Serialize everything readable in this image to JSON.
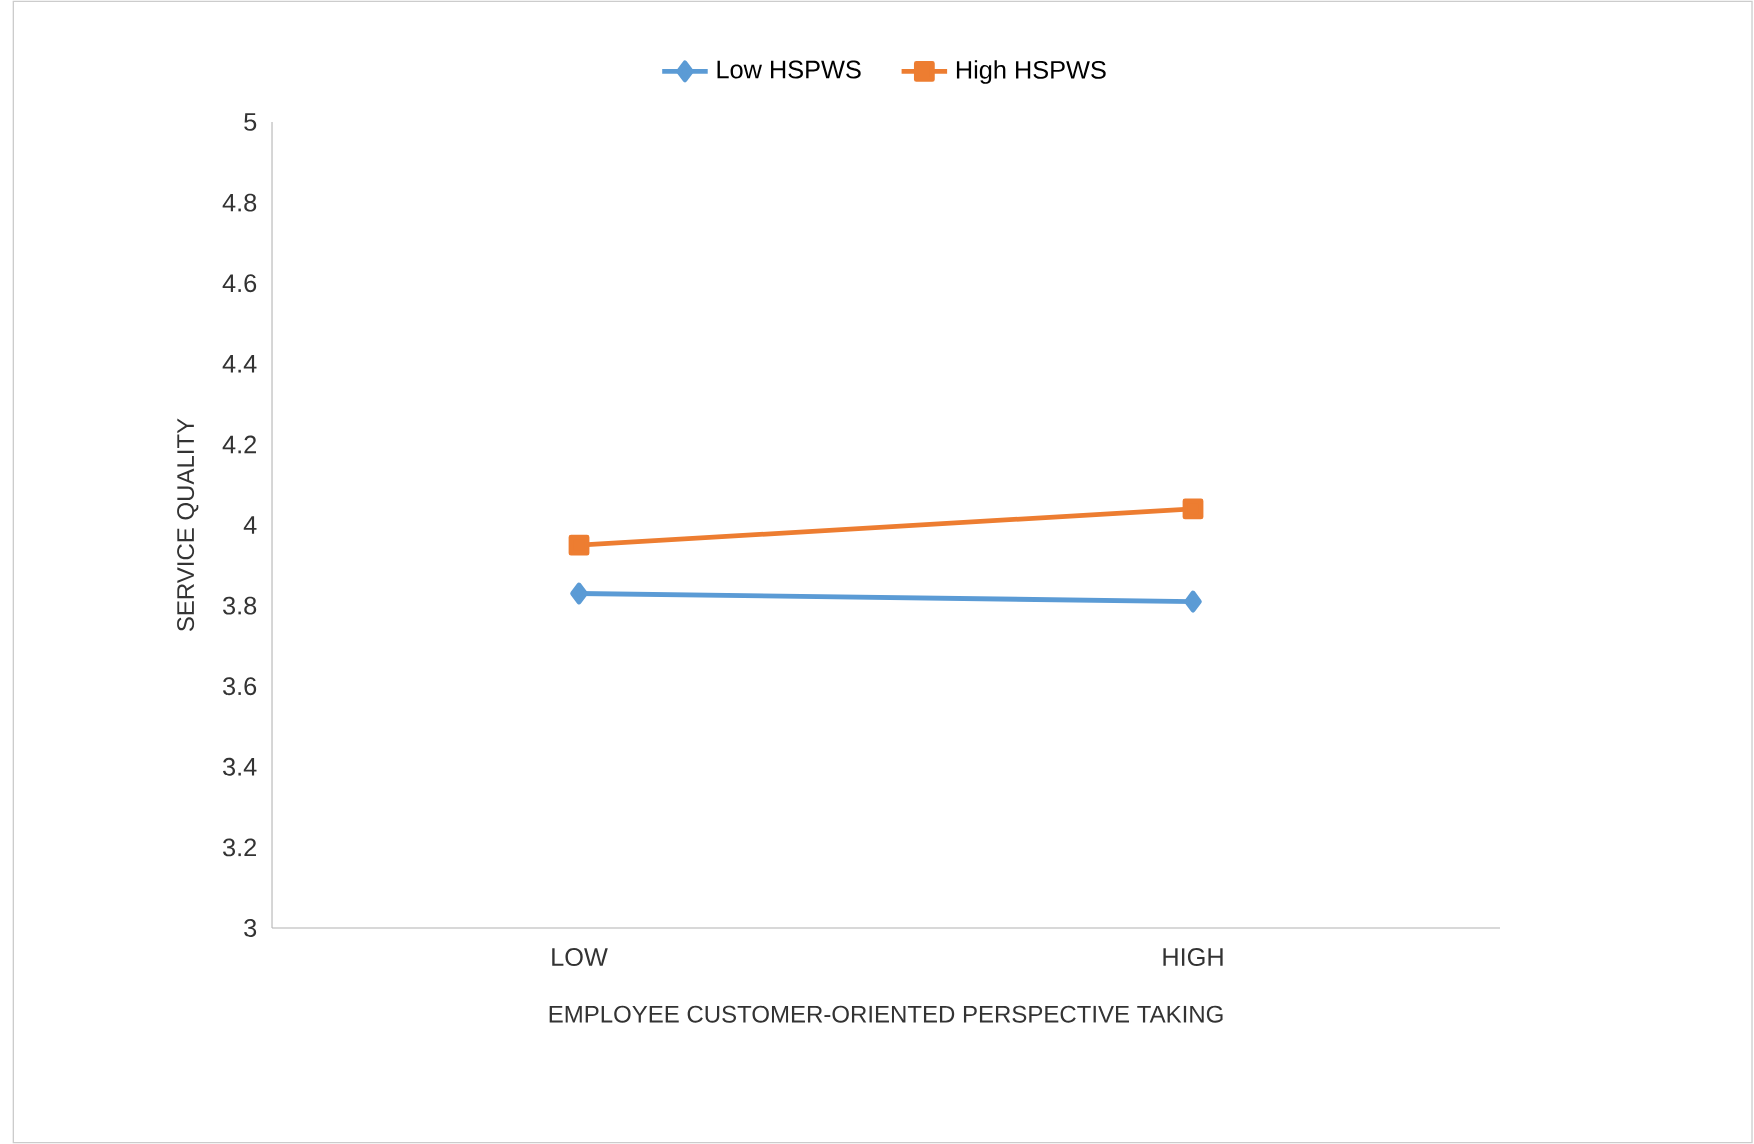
{
  "chart_data": {
    "type": "line",
    "xlabel": "EMPLOYEE CUSTOMER-ORIENTED PERSPECTIVE TAKING",
    "ylabel": "SERVICE QUALITY",
    "categories": [
      "LOW",
      "HIGH"
    ],
    "series": [
      {
        "name": "Low HSPWS",
        "color": "#5b9bd5",
        "values": [
          3.83,
          3.81
        ],
        "marker": "diamond"
      },
      {
        "name": "High HSPWS",
        "color": "#ed7d31",
        "values": [
          3.95,
          4.04
        ],
        "marker": "square"
      }
    ],
    "ylim": [
      3,
      5
    ],
    "yticks": [
      3,
      3.2,
      3.4,
      3.6,
      3.8,
      4,
      4.2,
      4.4,
      4.6,
      4.8,
      5
    ],
    "grid": false,
    "legend": "top",
    "line_style": "solid"
  }
}
